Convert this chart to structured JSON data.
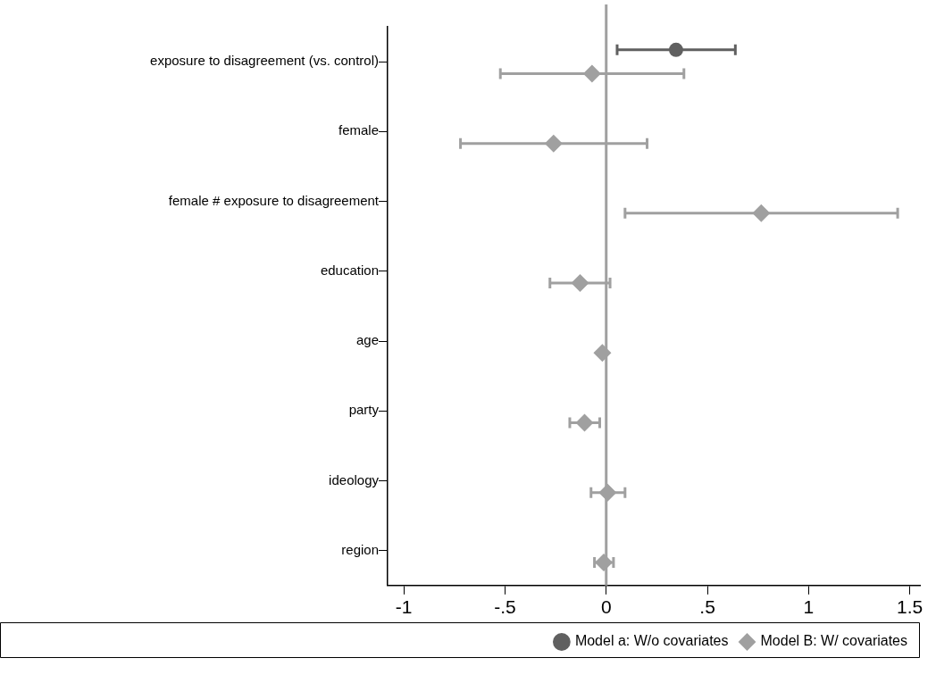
{
  "chart_data": {
    "type": "scatter",
    "orientation": "horizontal",
    "grid": false,
    "legend": "bottom",
    "categories": [
      "exposure to disagreement (vs. control)",
      "female",
      "female # exposure to disagreement",
      "education",
      "age",
      "party",
      "ideology",
      "region"
    ],
    "series": [
      {
        "name": "Model a: W/o covariates",
        "color": "#606060",
        "marker": "circle",
        "values": [
          0.345,
          null,
          null,
          null,
          null,
          null,
          null,
          null
        ],
        "errors": [
          [
            0.054,
            0.638
          ],
          null,
          null,
          null,
          null,
          null,
          null,
          null
        ]
      },
      {
        "name": "Model B: W/ covariates",
        "color": "#a0a0a0",
        "marker": "diamond",
        "values": [
          -0.07,
          -0.26,
          0.766,
          -0.129,
          -0.019,
          -0.107,
          0.007,
          -0.012
        ],
        "errors": [
          [
            -0.523,
            0.384
          ],
          [
            -0.72,
            0.202
          ],
          [
            0.093,
            1.44
          ],
          [
            -0.278,
            0.019
          ],
          null,
          [
            -0.18,
            -0.032
          ],
          [
            -0.075,
            0.093
          ],
          [
            -0.058,
            0.036
          ]
        ]
      }
    ],
    "xlim": [
      -1.08,
      1.55
    ],
    "xticks": [
      {
        "value": -1,
        "label": "-1"
      },
      {
        "value": -0.5,
        "label": "-.5"
      },
      0,
      {
        "value": 0.5,
        "label": ".5"
      },
      1,
      {
        "value": 1.5,
        "label": "1.5"
      }
    ],
    "ref_lines": [
      {
        "axis": "x",
        "value": 0,
        "color": "#a0a0a0"
      }
    ]
  }
}
